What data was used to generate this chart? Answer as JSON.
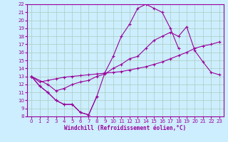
{
  "xlabel": "Windchill (Refroidissement éolien,°C)",
  "bg_color": "#cceeff",
  "grid_color": "#aaccbb",
  "line_color": "#990099",
  "xlim": [
    -0.5,
    23.5
  ],
  "ylim": [
    8,
    22
  ],
  "xticks": [
    0,
    1,
    2,
    3,
    4,
    5,
    6,
    7,
    8,
    9,
    10,
    11,
    12,
    13,
    14,
    15,
    16,
    17,
    18,
    19,
    20,
    21,
    22,
    23
  ],
  "yticks": [
    8,
    9,
    10,
    11,
    12,
    13,
    14,
    15,
    16,
    17,
    18,
    19,
    20,
    21,
    22
  ],
  "line_a_x": [
    0,
    1,
    2,
    3,
    4,
    5,
    6,
    7,
    8
  ],
  "line_a_y": [
    13,
    11.8,
    11.0,
    10.0,
    9.5,
    9.5,
    8.5,
    8.2,
    10.5
  ],
  "line_b_x": [
    0,
    1,
    2,
    3,
    4,
    5,
    6,
    7,
    8,
    9,
    10,
    11,
    12,
    13,
    14,
    15,
    16,
    17,
    18
  ],
  "line_b_y": [
    13,
    11.8,
    11.0,
    10.0,
    9.5,
    9.5,
    8.5,
    8.2,
    10.5,
    13.5,
    15.5,
    18.0,
    19.5,
    21.5,
    22.0,
    21.5,
    21.0,
    19.0,
    16.5
  ],
  "line_c_x": [
    0,
    2,
    3,
    4,
    5,
    6,
    7,
    8,
    9,
    10,
    11,
    12,
    13,
    14,
    15,
    16,
    17,
    18,
    19,
    20,
    21,
    22,
    23
  ],
  "line_c_y": [
    13,
    12.0,
    11.2,
    11.5,
    12.0,
    12.3,
    12.5,
    13.0,
    13.3,
    14.0,
    14.5,
    15.2,
    15.5,
    16.5,
    17.5,
    18.0,
    18.5,
    18.0,
    19.2,
    16.2,
    14.8,
    13.5,
    13.2
  ],
  "line_d_x": [
    0,
    1,
    2,
    3,
    4,
    5,
    6,
    7,
    8,
    9,
    10,
    11,
    12,
    13,
    14,
    15,
    16,
    17,
    18,
    19,
    20,
    21,
    22,
    23
  ],
  "line_d_y": [
    13,
    12.3,
    12.5,
    12.7,
    12.9,
    13.0,
    13.1,
    13.2,
    13.3,
    13.4,
    13.5,
    13.6,
    13.8,
    14.0,
    14.2,
    14.5,
    14.8,
    15.2,
    15.6,
    16.0,
    16.5,
    16.8,
    17.0,
    17.3
  ]
}
